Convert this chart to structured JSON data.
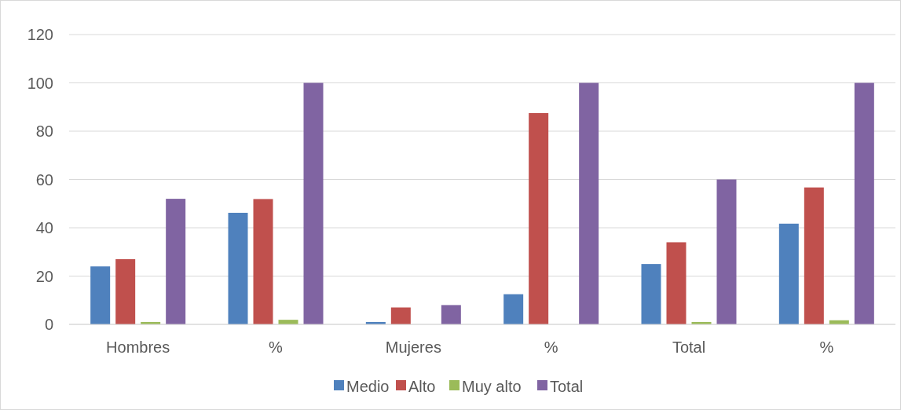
{
  "chart_data": {
    "type": "bar",
    "categories": [
      "Hombres",
      "%",
      "Mujeres",
      "%",
      "Total",
      "%"
    ],
    "series": [
      {
        "name": "Medio",
        "color": "#4f81bd",
        "values": [
          24,
          46.2,
          1,
          12.5,
          25,
          41.7
        ]
      },
      {
        "name": "Alto",
        "color": "#c0504d",
        "values": [
          27,
          51.9,
          7,
          87.5,
          34,
          56.7
        ]
      },
      {
        "name": "Muy alto",
        "color": "#9bbb59",
        "values": [
          1,
          1.9,
          0,
          0,
          1,
          1.7
        ]
      },
      {
        "name": "Total",
        "color": "#8064a2",
        "values": [
          52,
          100,
          8,
          100,
          60,
          100
        ]
      }
    ],
    "ylim": [
      0,
      120
    ],
    "yticks": [
      0,
      20,
      40,
      60,
      80,
      100,
      120
    ],
    "grid": "y",
    "legend": "bottom"
  }
}
